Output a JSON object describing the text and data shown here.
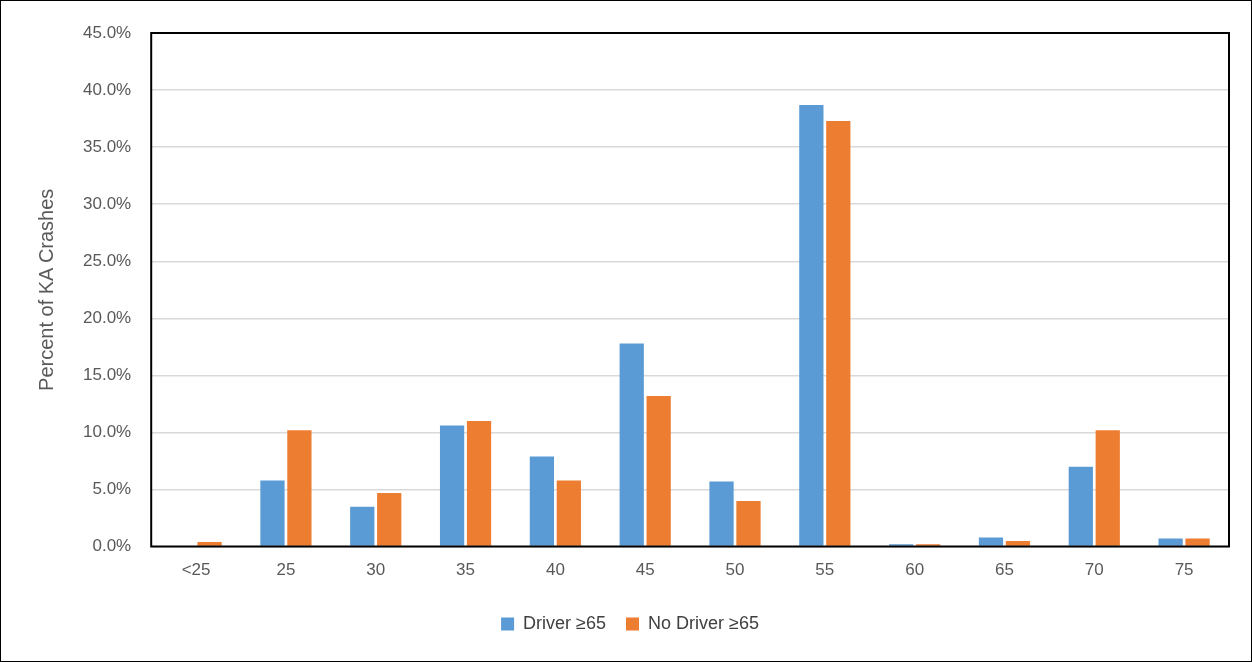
{
  "chart_data": {
    "type": "bar",
    "ylabel": "Percent of KA Crashes",
    "categories": [
      "<25",
      "25",
      "30",
      "35",
      "40",
      "45",
      "50",
      "55",
      "60",
      "65",
      "70",
      "75"
    ],
    "series": [
      {
        "name": "Driver ≥65",
        "color": "#5b9bd5",
        "values": [
          null,
          5.8,
          3.5,
          10.6,
          7.9,
          17.8,
          5.7,
          38.7,
          0.2,
          0.8,
          7.0,
          0.7
        ]
      },
      {
        "name": "No Driver ≥65",
        "color": "#ed7d31",
        "values": [
          0.4,
          10.2,
          4.7,
          11.0,
          5.8,
          13.2,
          4.0,
          37.3,
          0.2,
          0.5,
          10.2,
          0.7
        ]
      }
    ],
    "ylim": [
      0,
      45
    ],
    "yticks": [
      {
        "value": 0,
        "label": "0.0%"
      },
      {
        "value": 5,
        "label": "5.0%"
      },
      {
        "value": 10,
        "label": "10.0%"
      },
      {
        "value": 15,
        "label": "15.0%"
      },
      {
        "value": 20,
        "label": "20.0%"
      },
      {
        "value": 25,
        "label": "25.0%"
      },
      {
        "value": 30,
        "label": "30.0%"
      },
      {
        "value": 35,
        "label": "35.0%"
      },
      {
        "value": 40,
        "label": "40.0%"
      },
      {
        "value": 45,
        "label": "45.0%"
      }
    ],
    "grid": "y",
    "legend": "bottom"
  }
}
